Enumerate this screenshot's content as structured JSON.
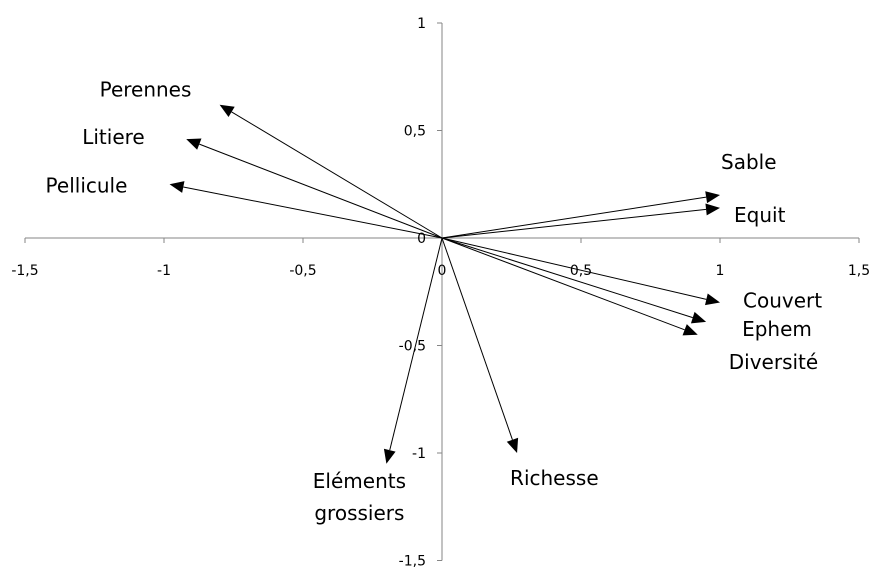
{
  "chart_data": {
    "type": "scatter",
    "subtype": "vector-biplot",
    "title": "",
    "xlabel": "",
    "ylabel": "",
    "xlim": [
      -1.5,
      1.5
    ],
    "ylim": [
      -1.5,
      1
    ],
    "grid": false,
    "legend": "none",
    "x_ticks": [
      {
        "value": -1.5,
        "label": "-1,5"
      },
      {
        "value": -1,
        "label": "-1"
      },
      {
        "value": -0.5,
        "label": "-0,5"
      },
      {
        "value": 0,
        "label": "0"
      },
      {
        "value": 0.5,
        "label": "0,5"
      },
      {
        "value": 1,
        "label": "1"
      },
      {
        "value": 1.5,
        "label": "1,5"
      }
    ],
    "y_ticks": [
      {
        "value": 1,
        "label": "1"
      },
      {
        "value": 0.5,
        "label": "0,5"
      },
      {
        "value": 0,
        "label": "0"
      },
      {
        "value": -0.5,
        "label": "-0,5"
      },
      {
        "value": -1,
        "label": "-1"
      },
      {
        "value": -1.5,
        "label": "-1,5"
      }
    ],
    "vectors": [
      {
        "name": "Perennes",
        "x": -0.8,
        "y": 0.62,
        "label_lines": [
          "Perennes"
        ]
      },
      {
        "name": "Litiere",
        "x": -0.92,
        "y": 0.46,
        "label_lines": [
          "Litiere"
        ]
      },
      {
        "name": "Pellicule",
        "x": -0.98,
        "y": 0.25,
        "label_lines": [
          "Pellicule"
        ]
      },
      {
        "name": "Sable",
        "x": 1,
        "y": 0.2,
        "label_lines": [
          "Sable"
        ]
      },
      {
        "name": "Equit",
        "x": 1,
        "y": 0.14,
        "label_lines": [
          "Equit"
        ]
      },
      {
        "name": "Couvert",
        "x": 1,
        "y": -0.3,
        "label_lines": [
          "Couvert"
        ]
      },
      {
        "name": "Ephem",
        "x": 0.95,
        "y": -0.39,
        "label_lines": [
          "Ephem"
        ]
      },
      {
        "name": "Diversité",
        "x": 0.92,
        "y": -0.45,
        "label_lines": [
          "Diversité"
        ]
      },
      {
        "name": "Richesse",
        "x": 0.27,
        "y": -1,
        "label_lines": [
          "Richesse"
        ]
      },
      {
        "name": "Eléments grossiers",
        "x": -0.2,
        "y": -1.05,
        "label_lines": [
          "Eléments",
          "grossiers"
        ]
      }
    ]
  }
}
